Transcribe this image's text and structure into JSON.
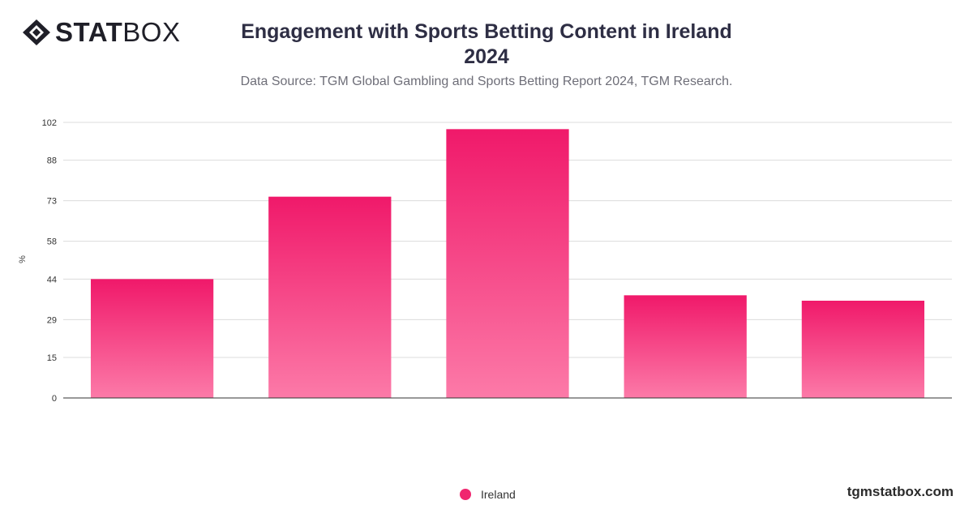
{
  "brand": {
    "logo_text_bold": "STAT",
    "logo_text_light": "BOX",
    "footer": "tgmstatbox.com"
  },
  "header": {
    "title": "Engagement with Sports Betting Content in Ireland 2024",
    "subtitle": "Data Source: TGM Global Gambling and Sports Betting Report 2024, TGM Research."
  },
  "colors": {
    "bar_top": "#f0196a",
    "bar_bottom": "#fc7aa8",
    "grid": "#dcdcdc",
    "axis": "#333333"
  },
  "chart_data": {
    "type": "bar",
    "title": "Engagement with Sports Betting Content in Ireland 2024",
    "ylabel": "%",
    "categories": [
      "",
      "",
      "",
      "",
      ""
    ],
    "series": [
      {
        "name": "Ireland",
        "values": [
          44,
          74.5,
          99.5,
          38,
          36
        ]
      }
    ],
    "yticks": [
      "0",
      "15",
      "29",
      "44",
      "58",
      "73",
      "88",
      "102"
    ],
    "ylim": [
      0,
      102
    ],
    "grid": true,
    "legend": "bottom-center"
  }
}
